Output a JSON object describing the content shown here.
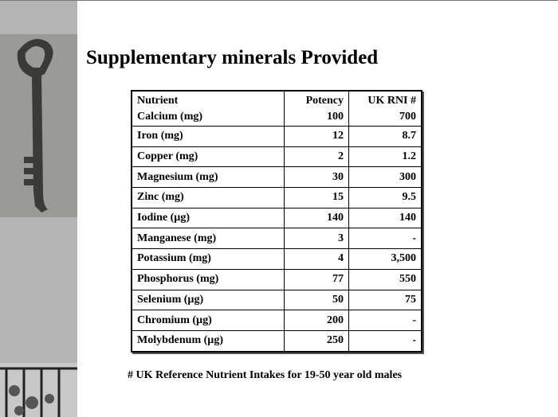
{
  "title": "Supplementary minerals Provided",
  "table": {
    "header": [
      "Nutrient",
      "Potency",
      "UK RNI #"
    ],
    "rows": [
      [
        "Calcium (mg)",
        "100",
        "700"
      ],
      [
        "Iron (mg)",
        "12",
        "8.7"
      ],
      [
        "Copper (mg)",
        "2",
        "1.2"
      ],
      [
        "Magnesium (mg)",
        "30",
        "300"
      ],
      [
        "Zinc (mg)",
        "15",
        "9.5"
      ],
      [
        "Iodine (µg)",
        "140",
        "140"
      ],
      [
        "Manganese (mg)",
        "3",
        "-"
      ],
      [
        "Potassium (mg)",
        "4",
        "3,500"
      ],
      [
        "Phosphorus (mg)",
        "77",
        "550"
      ],
      [
        "Selenium (µg)",
        "50",
        "75"
      ],
      [
        "Chromium (µg)",
        "200",
        "-"
      ],
      [
        "Molybdenum (µg)",
        "250",
        "-"
      ]
    ]
  },
  "footnote": "#  UK Reference Nutrient Intakes for 19-50 year old  males"
}
